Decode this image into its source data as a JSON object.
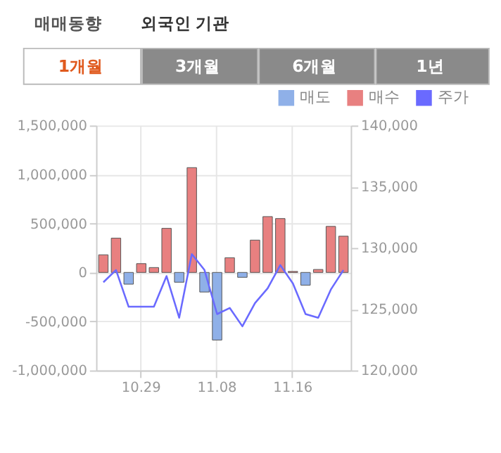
{
  "chart_data": {
    "type": "bar",
    "title": "매매동향",
    "annotations": [
      "외국인",
      "기관",
      "1개월",
      "3개월",
      "6개월",
      "1년"
    ],
    "categories": [
      null,
      null,
      null,
      "10.29",
      null,
      null,
      null,
      null,
      null,
      "11.08",
      null,
      null,
      null,
      null,
      null,
      "11.16",
      null,
      null,
      null,
      null
    ],
    "series": [
      {
        "name": "매도",
        "color": "#8fb0e8",
        "values": [
          null,
          null,
          -120000,
          null,
          null,
          null,
          -100000,
          null,
          -200000,
          -690000,
          null,
          -50000,
          null,
          null,
          null,
          null,
          -130000,
          null,
          null,
          null
        ]
      },
      {
        "name": "매수",
        "color": "#e88080",
        "values": [
          180000,
          350000,
          null,
          90000,
          50000,
          450000,
          null,
          1070000,
          null,
          null,
          150000,
          null,
          330000,
          570000,
          550000,
          10000,
          null,
          30000,
          470000,
          370000
        ]
      },
      {
        "name": "주가",
        "type": "line",
        "axis": "y2",
        "color": "#6a6aff",
        "values": [
          127200,
          128200,
          125200,
          125200,
          125200,
          127700,
          124300,
          129500,
          128200,
          124600,
          125100,
          123600,
          125500,
          126700,
          128600,
          127100,
          124600,
          124300,
          126600,
          128200
        ]
      }
    ],
    "ylim": [
      -1000000,
      1500000
    ],
    "yticks": [
      {
        "value": -1000000,
        "label": "-1,000,000"
      },
      {
        "value": -500000,
        "label": "-500,000"
      },
      {
        "value": 0,
        "label": "0"
      },
      {
        "value": 500000,
        "label": "500,000"
      },
      {
        "value": 1000000,
        "label": "1,000,000"
      },
      {
        "value": 1500000,
        "label": "1,500,000"
      }
    ],
    "y2lim": [
      120000,
      140000
    ],
    "y2ticks": [
      {
        "value": 120000,
        "label": "120,000"
      },
      {
        "value": 125000,
        "label": "125,000"
      },
      {
        "value": 130000,
        "label": "130,000"
      },
      {
        "value": 135000,
        "label": "135,000"
      },
      {
        "value": 140000,
        "label": "140,000"
      }
    ],
    "grid": true,
    "legend": "top right",
    "marker": "none"
  }
}
